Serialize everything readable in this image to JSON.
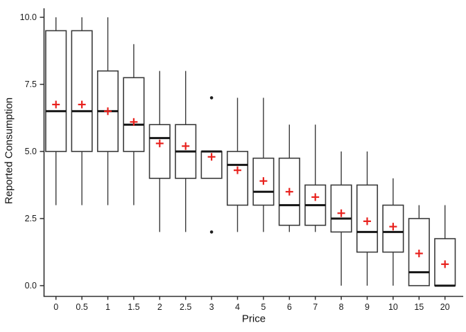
{
  "chart_data": {
    "type": "boxplot",
    "title": "",
    "xlabel": "Price",
    "ylabel": "Reported Consumption",
    "categories": [
      "0",
      "0.5",
      "1",
      "1.5",
      "2",
      "2.5",
      "3",
      "4",
      "5",
      "6",
      "7",
      "8",
      "9",
      "10",
      "15",
      "20"
    ],
    "ylim": [
      0,
      10
    ],
    "grid": false,
    "legend": "none",
    "mean_marker": "red-plus",
    "y_ticks": [
      {
        "value": 0,
        "label": "0.0"
      },
      {
        "value": 2.5,
        "label": "2.5"
      },
      {
        "value": 5,
        "label": "5.0"
      },
      {
        "value": 7.5,
        "label": "7.5"
      },
      {
        "value": 10,
        "label": "10.0"
      }
    ],
    "boxes": [
      {
        "price": "0",
        "whisker_low": 3,
        "q1": 5,
        "median": 6.5,
        "q3": 9.5,
        "whisker_high": 10,
        "mean": 6.75,
        "outliers": []
      },
      {
        "price": "0.5",
        "whisker_low": 3,
        "q1": 5,
        "median": 6.5,
        "q3": 9.5,
        "whisker_high": 10,
        "mean": 6.75,
        "outliers": []
      },
      {
        "price": "1",
        "whisker_low": 3,
        "q1": 5,
        "median": 6.5,
        "q3": 8,
        "whisker_high": 10,
        "mean": 6.5,
        "outliers": []
      },
      {
        "price": "1.5",
        "whisker_low": 3,
        "q1": 5,
        "median": 6,
        "q3": 7.75,
        "whisker_high": 9,
        "mean": 6.1,
        "outliers": []
      },
      {
        "price": "2",
        "whisker_low": 2,
        "q1": 4,
        "median": 5.5,
        "q3": 6,
        "whisker_high": 8,
        "mean": 5.3,
        "outliers": []
      },
      {
        "price": "2.5",
        "whisker_low": 2,
        "q1": 4,
        "median": 5,
        "q3": 6,
        "whisker_high": 8,
        "mean": 5.2,
        "outliers": []
      },
      {
        "price": "3",
        "whisker_low": 4,
        "q1": 4,
        "median": 5,
        "q3": 5,
        "whisker_high": 5,
        "mean": 4.8,
        "outliers": [
          7,
          2
        ]
      },
      {
        "price": "4",
        "whisker_low": 2,
        "q1": 3,
        "median": 4.5,
        "q3": 5,
        "whisker_high": 7,
        "mean": 4.3,
        "outliers": []
      },
      {
        "price": "5",
        "whisker_low": 2,
        "q1": 3,
        "median": 3.5,
        "q3": 4.75,
        "whisker_high": 7,
        "mean": 3.9,
        "outliers": []
      },
      {
        "price": "6",
        "whisker_low": 2,
        "q1": 2.25,
        "median": 3,
        "q3": 4.75,
        "whisker_high": 6,
        "mean": 3.5,
        "outliers": []
      },
      {
        "price": "7",
        "whisker_low": 2,
        "q1": 2.25,
        "median": 3,
        "q3": 3.75,
        "whisker_high": 6,
        "mean": 3.3,
        "outliers": []
      },
      {
        "price": "8",
        "whisker_low": 0,
        "q1": 2,
        "median": 2.5,
        "q3": 3.75,
        "whisker_high": 5,
        "mean": 2.7,
        "outliers": []
      },
      {
        "price": "9",
        "whisker_low": 0,
        "q1": 1.25,
        "median": 2,
        "q3": 3.75,
        "whisker_high": 5,
        "mean": 2.4,
        "outliers": []
      },
      {
        "price": "10",
        "whisker_low": 0,
        "q1": 1.25,
        "median": 2,
        "q3": 3,
        "whisker_high": 4,
        "mean": 2.2,
        "outliers": []
      },
      {
        "price": "15",
        "whisker_low": 0,
        "q1": 0,
        "median": 0.5,
        "q3": 2.5,
        "whisker_high": 3,
        "mean": 1.2,
        "outliers": []
      },
      {
        "price": "20",
        "whisker_low": 0,
        "q1": 0,
        "median": 0,
        "q3": 1.75,
        "whisker_high": 3,
        "mean": 0.8,
        "outliers": []
      }
    ]
  },
  "colors": {
    "background": "#ffffff",
    "box_stroke": "#3a3a3a",
    "box_fill": "#ffffff",
    "median": "#151515",
    "whisker": "#3a3a3a",
    "mean": "#e8211d",
    "outlier": "#1f1f1f",
    "axis": "#2f2f2f",
    "text": "#1a1a1a"
  }
}
